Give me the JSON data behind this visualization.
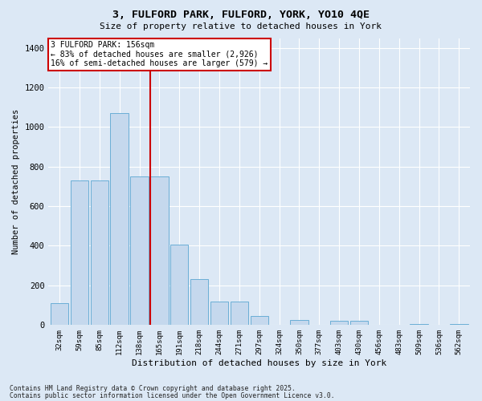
{
  "title_line1": "3, FULFORD PARK, FULFORD, YORK, YO10 4QE",
  "title_line2": "Size of property relative to detached houses in York",
  "xlabel": "Distribution of detached houses by size in York",
  "ylabel": "Number of detached properties",
  "categories": [
    "32sqm",
    "59sqm",
    "85sqm",
    "112sqm",
    "138sqm",
    "165sqm",
    "191sqm",
    "218sqm",
    "244sqm",
    "271sqm",
    "297sqm",
    "324sqm",
    "350sqm",
    "377sqm",
    "403sqm",
    "430sqm",
    "456sqm",
    "483sqm",
    "509sqm",
    "536sqm",
    "562sqm"
  ],
  "values": [
    110,
    730,
    730,
    1070,
    750,
    750,
    405,
    230,
    115,
    115,
    45,
    0,
    25,
    0,
    20,
    20,
    0,
    0,
    5,
    0,
    5
  ],
  "bar_color": "#c5d8ed",
  "bar_edge_color": "#6aaed6",
  "vline_x": 5.0,
  "vline_color": "#cc0000",
  "annotation_title": "3 FULFORD PARK: 156sqm",
  "annotation_line2": "← 83% of detached houses are smaller (2,926)",
  "annotation_line3": "16% of semi-detached houses are larger (579) →",
  "annotation_box_color": "#cc0000",
  "annotation_bg": "#ffffff",
  "ylim": [
    0,
    1450
  ],
  "yticks": [
    0,
    200,
    400,
    600,
    800,
    1000,
    1200,
    1400
  ],
  "footer_line1": "Contains HM Land Registry data © Crown copyright and database right 2025.",
  "footer_line2": "Contains public sector information licensed under the Open Government Licence v3.0.",
  "fig_bg_color": "#dce8f5",
  "plot_bg_color": "#dce8f5"
}
